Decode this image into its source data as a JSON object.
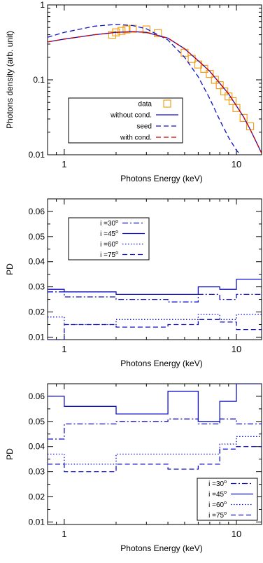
{
  "colors": {
    "blue": "#1010c8",
    "red": "#d00000",
    "orange": "#f0a020",
    "axis": "#000000"
  },
  "chart_data": [
    {
      "type": "line",
      "xlabel": "Photons Energy (keV)",
      "ylabel": "Photons density (arb. unit)",
      "xscale": "log",
      "yscale": "log",
      "xlim": [
        0.8,
        14
      ],
      "ylim": [
        0.01,
        1
      ],
      "xticks": [
        {
          "v": 1,
          "label": "1"
        },
        {
          "v": 10,
          "label": "10"
        }
      ],
      "yticks": [
        {
          "v": 0.01,
          "label": "0.01"
        },
        {
          "v": 0.1,
          "label": "0.1"
        },
        {
          "v": 1,
          "label": "1"
        }
      ],
      "legend_position": "lower-left",
      "series": [
        {
          "name": "data",
          "style": "squares",
          "color": "#f0a020",
          "x": [
            1.9,
            2.0,
            2.15,
            2.3,
            2.5,
            3.0,
            3.5,
            5.0,
            5.5,
            6.0,
            6.5,
            7.0,
            7.5,
            8.0,
            8.5,
            9.0,
            9.5,
            10.0,
            11.0,
            12.0
          ],
          "y": [
            0.4,
            0.43,
            0.45,
            0.47,
            0.48,
            0.47,
            0.42,
            0.23,
            0.19,
            0.16,
            0.14,
            0.12,
            0.1,
            0.085,
            0.07,
            0.06,
            0.052,
            0.042,
            0.031,
            0.024
          ]
        },
        {
          "name": "without cond.",
          "style": "solid",
          "color": "#1010c8",
          "x": [
            0.8,
            1.0,
            1.5,
            2.0,
            2.5,
            3.0,
            4.0,
            5.0,
            6.0,
            7.0,
            8.0,
            9.0,
            10.0,
            11.0,
            12.0,
            13.0,
            14.0
          ],
          "y": [
            0.32,
            0.35,
            0.4,
            0.43,
            0.44,
            0.43,
            0.36,
            0.26,
            0.18,
            0.13,
            0.09,
            0.065,
            0.045,
            0.032,
            0.022,
            0.015,
            0.0105
          ]
        },
        {
          "name": "seed",
          "style": "dashed",
          "color": "#1010c8",
          "x": [
            0.8,
            1.0,
            1.5,
            2.0,
            2.5,
            3.0,
            4.0,
            5.0,
            6.0,
            7.0,
            8.0,
            9.0,
            10.0,
            10.5
          ],
          "y": [
            0.37,
            0.43,
            0.52,
            0.55,
            0.53,
            0.48,
            0.34,
            0.2,
            0.11,
            0.056,
            0.029,
            0.017,
            0.0115,
            0.0101
          ]
        },
        {
          "name": "with cond.",
          "style": "dashed",
          "color": "#d00000",
          "x": [
            0.8,
            1.0,
            1.5,
            2.0,
            2.5,
            3.0,
            4.0,
            5.0,
            6.0,
            7.0,
            8.0,
            9.0,
            10.0,
            11.0,
            12.0,
            13.0,
            14.0
          ],
          "y": [
            0.32,
            0.35,
            0.4,
            0.43,
            0.44,
            0.43,
            0.36,
            0.26,
            0.18,
            0.13,
            0.09,
            0.065,
            0.045,
            0.032,
            0.022,
            0.015,
            0.0105
          ]
        }
      ]
    },
    {
      "type": "line",
      "xlabel": "Photons Energy (keV)",
      "ylabel": "PD",
      "xscale": "log",
      "xlim": [
        0.8,
        14
      ],
      "ylim": [
        0.009,
        0.065
      ],
      "xticks": [
        {
          "v": 1,
          "label": "1"
        },
        {
          "v": 10,
          "label": "10"
        }
      ],
      "yticks": [
        {
          "v": 0.01,
          "label": "0.01"
        },
        {
          "v": 0.02,
          "label": "0.02"
        },
        {
          "v": 0.03,
          "label": "0.03"
        },
        {
          "v": 0.04,
          "label": "0.04"
        },
        {
          "v": 0.05,
          "label": "0.05"
        },
        {
          "v": 0.06,
          "label": "0.06"
        }
      ],
      "legend_position": "upper-left",
      "series": [
        {
          "name": "i =30",
          "sup": "o",
          "style": "dashdot",
          "color": "#1010c8",
          "edges": [
            0.8,
            1,
            2,
            4,
            6,
            8,
            10,
            14
          ],
          "values": [
            0.028,
            0.026,
            0.025,
            0.024,
            0.027,
            0.025,
            0.027
          ]
        },
        {
          "name": "i =45",
          "sup": "o",
          "style": "solid",
          "color": "#1010c8",
          "edges": [
            0.8,
            1,
            2,
            4,
            6,
            8,
            10,
            14
          ],
          "values": [
            0.029,
            0.028,
            0.027,
            0.027,
            0.03,
            0.029,
            0.033
          ]
        },
        {
          "name": "i =60",
          "sup": "o",
          "style": "dotted",
          "color": "#1010c8",
          "edges": [
            0.8,
            1,
            2,
            4,
            6,
            8,
            10,
            14
          ],
          "values": [
            0.018,
            0.015,
            0.017,
            0.017,
            0.019,
            0.017,
            0.019
          ]
        },
        {
          "name": "i =75",
          "sup": "o",
          "style": "dashed",
          "color": "#1010c8",
          "edges": [
            0.8,
            1,
            2,
            4,
            6,
            8,
            10,
            14
          ],
          "values": [
            0.009,
            0.015,
            0.014,
            0.015,
            0.017,
            0.016,
            0.013
          ]
        }
      ]
    },
    {
      "type": "line",
      "xlabel": "Photons Energy (keV)",
      "ylabel": "PD",
      "xscale": "log",
      "xlim": [
        0.8,
        14
      ],
      "ylim": [
        0.009,
        0.065
      ],
      "xticks": [
        {
          "v": 1,
          "label": "1"
        },
        {
          "v": 10,
          "label": "10"
        }
      ],
      "yticks": [
        {
          "v": 0.01,
          "label": "0.01"
        },
        {
          "v": 0.02,
          "label": "0.02"
        },
        {
          "v": 0.03,
          "label": "0.03"
        },
        {
          "v": 0.04,
          "label": "0.04"
        },
        {
          "v": 0.05,
          "label": "0.05"
        },
        {
          "v": 0.06,
          "label": "0.06"
        }
      ],
      "legend_position": "lower-right",
      "series": [
        {
          "name": "i =30",
          "sup": "o",
          "style": "dashdot",
          "color": "#1010c8",
          "edges": [
            0.8,
            1,
            2,
            4,
            6,
            8,
            10,
            14
          ],
          "values": [
            0.043,
            0.049,
            0.05,
            0.051,
            0.049,
            0.051,
            0.049
          ]
        },
        {
          "name": "i =45",
          "sup": "o",
          "style": "solid",
          "color": "#1010c8",
          "edges": [
            0.8,
            1,
            2,
            4,
            6,
            8,
            10,
            14
          ],
          "values": [
            0.06,
            0.056,
            0.053,
            0.062,
            0.05,
            0.058,
            0.065
          ]
        },
        {
          "name": "i =60",
          "sup": "o",
          "style": "dotted",
          "color": "#1010c8",
          "edges": [
            0.8,
            1,
            2,
            4,
            6,
            8,
            10,
            14
          ],
          "values": [
            0.037,
            0.033,
            0.037,
            0.037,
            0.037,
            0.041,
            0.044
          ]
        },
        {
          "name": "i =75",
          "sup": "o",
          "style": "dashed",
          "color": "#1010c8",
          "edges": [
            0.8,
            1,
            2,
            4,
            6,
            8,
            10,
            14
          ],
          "values": [
            0.033,
            0.03,
            0.033,
            0.031,
            0.033,
            0.039,
            0.04
          ]
        }
      ]
    }
  ]
}
